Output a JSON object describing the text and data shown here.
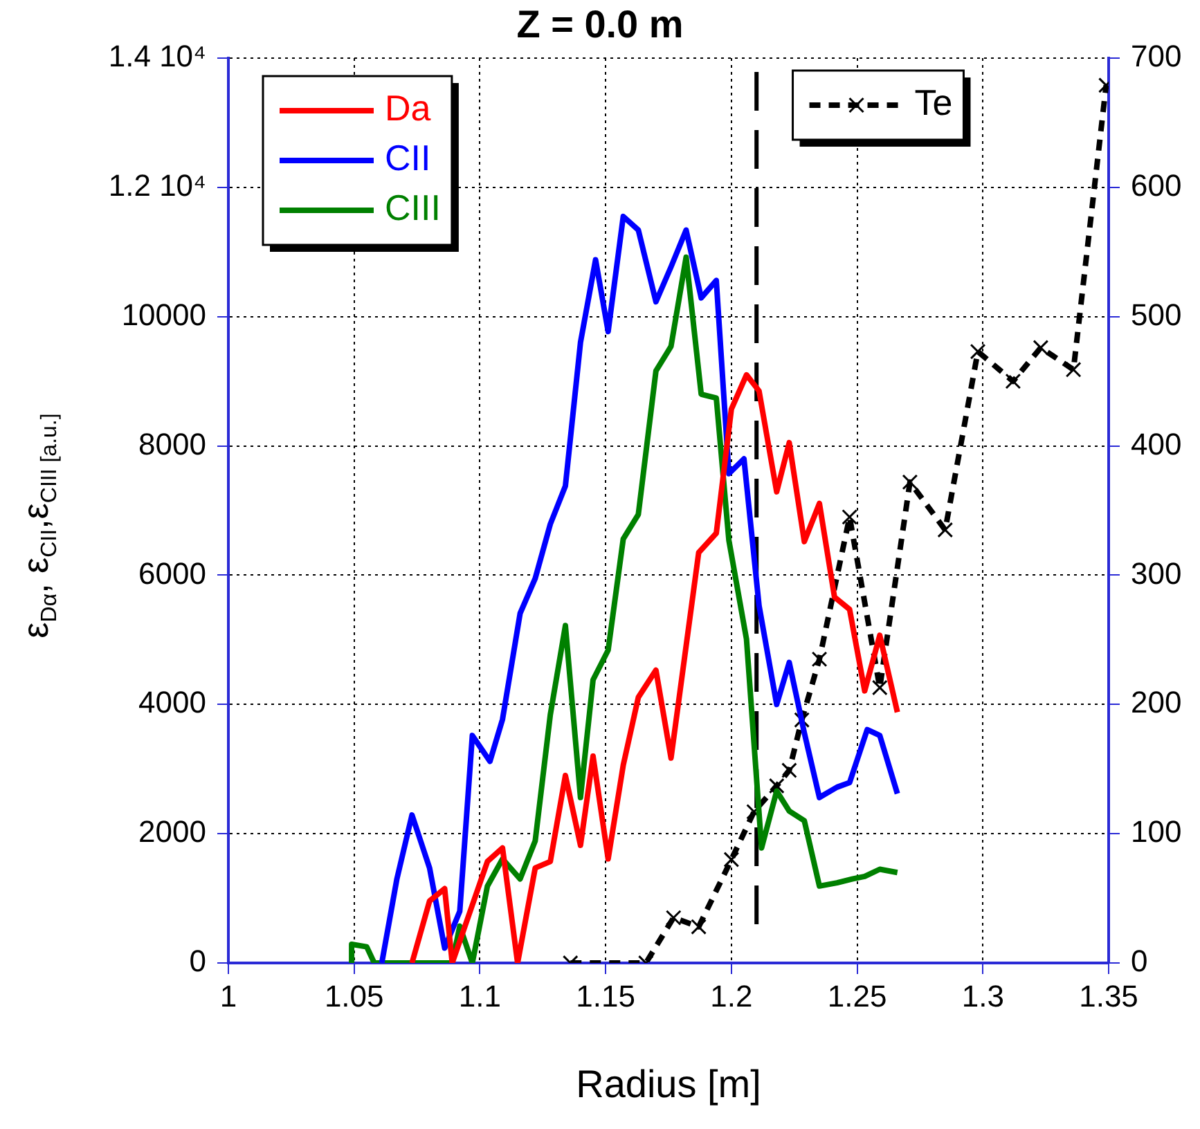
{
  "chart_data": {
    "type": "line",
    "title": "Z = 0.0 m",
    "xlabel": "Radius [m]",
    "ylabel": "ε$_{Dα}$, ε$_{CII}$,ε$_{CIII [a.u.]}$",
    "xlim": [
      1,
      1.35
    ],
    "xticks": [
      1,
      1.05,
      1.1,
      1.15,
      1.2,
      1.25,
      1.3,
      1.35
    ],
    "ylim": [
      0,
      14000
    ],
    "yticks": [
      0,
      2000,
      4000,
      6000,
      8000,
      10000,
      {
        "value": 12000,
        "label": "1.2 10⁴"
      },
      {
        "value": 14000,
        "label": "1.4 10⁴"
      }
    ],
    "y2lim": [
      0,
      700
    ],
    "y2ticks": [
      0,
      100,
      200,
      300,
      400,
      500,
      600,
      700
    ],
    "grid": true,
    "legend": "top left",
    "ref_lines": [
      {
        "axis": "x",
        "value": 1.21,
        "label": null,
        "color": "#000000",
        "line_style": "dashed"
      }
    ],
    "series": [
      {
        "name": "Da",
        "color": "#ff0000",
        "marker": "none",
        "line_style": "solid",
        "x": [
          1.073,
          1.08,
          1.086,
          1.089,
          1.103,
          1.109,
          1.115,
          1.122,
          1.128,
          1.134,
          1.14,
          1.145,
          1.151,
          1.157,
          1.163,
          1.17,
          1.176,
          1.187,
          1.194,
          1.2,
          1.206,
          1.211,
          1.218,
          1.223,
          1.229,
          1.235,
          1.241,
          1.247,
          1.253,
          1.259,
          1.266
        ],
        "values": [
          0,
          960,
          1150,
          0,
          1570,
          1780,
          0,
          1470,
          1570,
          2900,
          1820,
          3200,
          1610,
          3060,
          4110,
          4530,
          3170,
          6350,
          6650,
          8570,
          9100,
          8850,
          7290,
          8050,
          6520,
          7110,
          5660,
          5470,
          4210,
          5070,
          3880
        ]
      },
      {
        "name": "CII",
        "color": "#0000ff",
        "marker": "none",
        "line_style": "solid",
        "x": [
          1.061,
          1.067,
          1.073,
          1.08,
          1.086,
          1.092,
          1.097,
          1.104,
          1.109,
          1.116,
          1.122,
          1.128,
          1.134,
          1.14,
          1.146,
          1.151,
          1.157,
          1.163,
          1.17,
          1.176,
          1.182,
          1.188,
          1.194,
          1.199,
          1.205,
          1.211,
          1.218,
          1.223,
          1.229,
          1.235,
          1.242,
          1.247,
          1.254,
          1.259,
          1.266
        ],
        "values": [
          0,
          1300,
          2290,
          1470,
          230,
          800,
          3520,
          3120,
          3770,
          5410,
          5950,
          6790,
          7380,
          9600,
          10880,
          9770,
          11550,
          11340,
          10230,
          10770,
          11340,
          10290,
          10560,
          7570,
          7800,
          5530,
          4000,
          4650,
          3560,
          2560,
          2720,
          2790,
          3610,
          3520,
          2620
        ]
      },
      {
        "name": "CIII",
        "color": "#008000",
        "marker": "none",
        "line_style": "solid",
        "x": [
          1.049,
          1.049,
          1.055,
          1.058,
          1.089,
          1.092,
          1.097,
          1.103,
          1.109,
          1.116,
          1.122,
          1.128,
          1.134,
          1.14,
          1.145,
          1.151,
          1.157,
          1.163,
          1.17,
          1.176,
          1.182,
          1.188,
          1.194,
          1.199,
          1.206,
          1.212,
          1.218,
          1.223,
          1.229,
          1.235,
          1.242,
          1.248,
          1.253,
          1.259,
          1.266
        ],
        "values": [
          0,
          290,
          250,
          0,
          0,
          570,
          0,
          1190,
          1610,
          1300,
          1890,
          3840,
          5220,
          2560,
          4380,
          4840,
          6560,
          6940,
          9160,
          9540,
          10920,
          8800,
          8740,
          6540,
          5010,
          1780,
          2660,
          2350,
          2200,
          1190,
          1240,
          1300,
          1340,
          1450,
          1400
        ]
      },
      {
        "name": "Te",
        "color": "#000000",
        "axis": "y2",
        "marker": "cross",
        "line_style": "dashed",
        "x": [
          1.136,
          1.166,
          1.177,
          1.187,
          1.2,
          1.209,
          1.218,
          1.223,
          1.228,
          1.235,
          1.247,
          1.259,
          1.271,
          1.285,
          1.298,
          1.312,
          1.323,
          1.336,
          1.349
        ],
        "values": [
          0,
          0,
          35,
          28,
          80,
          117,
          137,
          149,
          188,
          235,
          345,
          213,
          372,
          335,
          473,
          450,
          476,
          459,
          679
        ]
      }
    ]
  }
}
